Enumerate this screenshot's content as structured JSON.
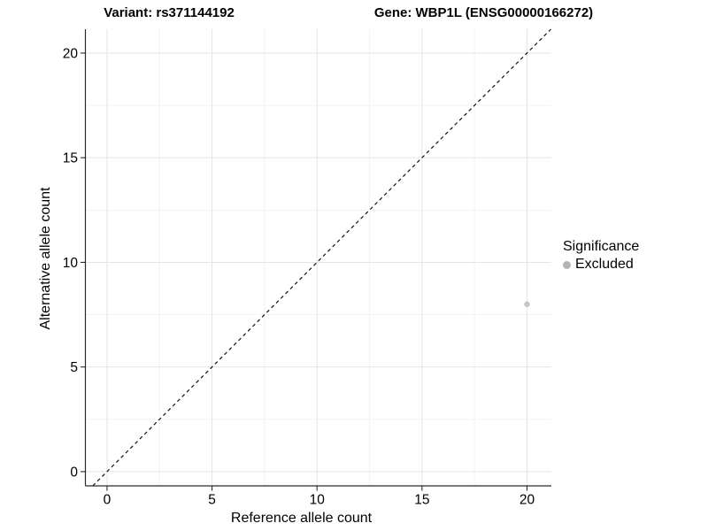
{
  "titles": {
    "variant": "Variant: rs371144192",
    "gene": "Gene: WBP1L (ENSG00000166272)"
  },
  "chart_data": {
    "type": "scatter",
    "xlabel": "Reference allele count",
    "ylabel": "Alternative allele count",
    "x_ticks": [
      0,
      5,
      10,
      15,
      20
    ],
    "y_ticks": [
      0,
      5,
      10,
      15,
      20
    ],
    "x_minor_ticks": [
      2.5,
      7.5,
      12.5,
      17.5
    ],
    "y_minor_ticks": [
      2.5,
      7.5,
      12.5,
      17.5
    ],
    "xlim": [
      -1.03,
      21.16
    ],
    "ylim": [
      -0.68,
      21.14
    ],
    "points": [
      {
        "x": 20,
        "y": 8,
        "series": "Excluded",
        "color": "#c6c6c6"
      }
    ],
    "reference_line": {
      "type": "identity",
      "slope": 1,
      "intercept": 0,
      "style": "dashed",
      "color": "#111111"
    },
    "legend": {
      "title": "Significance",
      "position": "right",
      "items": [
        {
          "label": "Excluded",
          "color": "#b3b3b3"
        }
      ]
    },
    "grid": {
      "major_color": "#e5e5e5",
      "minor_color": "#f2f2f2"
    },
    "axis_color": "#2a2a2a",
    "tick_label_color": "#000000"
  }
}
